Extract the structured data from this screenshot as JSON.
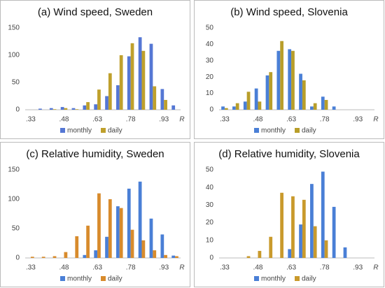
{
  "chart_data": [
    {
      "type": "bar",
      "title": "(a) Wind speed, Sweden",
      "xlabel": "R",
      "categories": [
        ".33",
        null,
        null,
        ".48",
        null,
        null,
        ".63",
        null,
        null,
        ".78",
        null,
        null,
        ".93",
        null
      ],
      "series": [
        {
          "name": "monthly",
          "color": "#5577d4",
          "values": [
            0,
            2,
            3,
            5,
            3,
            8,
            10,
            25,
            45,
            98,
            133,
            121,
            38,
            8
          ]
        },
        {
          "name": "daily",
          "color": "#bfa02c",
          "values": [
            0,
            0,
            1,
            3,
            1,
            14,
            37,
            67,
            100,
            122,
            108,
            43,
            18,
            0
          ]
        }
      ],
      "ylim": [
        0,
        150
      ],
      "yticks": [
        0,
        50,
        100,
        150
      ]
    },
    {
      "type": "bar",
      "title": "(b) Wind speed, Slovenia",
      "xlabel": "R",
      "categories": [
        ".33",
        null,
        null,
        ".48",
        null,
        null,
        ".63",
        null,
        null,
        ".78",
        null,
        null,
        ".93",
        null
      ],
      "series": [
        {
          "name": "monthly",
          "color": "#4a7fd6",
          "values": [
            2,
            2,
            5,
            13,
            21,
            36,
            37,
            22,
            2,
            8,
            2,
            0,
            0,
            0
          ]
        },
        {
          "name": "daily",
          "color": "#b89e2a",
          "values": [
            1,
            4,
            11,
            5,
            23,
            42,
            36,
            18,
            4,
            6,
            0,
            0,
            0,
            0
          ]
        }
      ],
      "ylim": [
        0,
        50
      ],
      "yticks": [
        0,
        10,
        20,
        30,
        40,
        50
      ]
    },
    {
      "type": "bar",
      "title": "(c) Relative humidity, Sweden",
      "xlabel": "R",
      "categories": [
        ".33",
        null,
        null,
        ".48",
        null,
        null,
        ".63",
        null,
        null,
        ".78",
        null,
        null,
        ".93",
        null
      ],
      "series": [
        {
          "name": "monthly",
          "color": "#4a7fd6",
          "values": [
            0,
            0,
            0,
            0,
            0,
            5,
            13,
            36,
            88,
            118,
            130,
            67,
            40,
            4
          ]
        },
        {
          "name": "daily",
          "color": "#d88b2c",
          "values": [
            2,
            2,
            3,
            10,
            37,
            55,
            110,
            100,
            85,
            48,
            30,
            13,
            5,
            3
          ]
        }
      ],
      "ylim": [
        0,
        150
      ],
      "yticks": [
        0,
        50,
        100,
        150
      ]
    },
    {
      "type": "bar",
      "title": "(d) Relative humidity, Slovenia",
      "xlabel": "R",
      "categories": [
        ".33",
        null,
        null,
        ".48",
        null,
        null,
        ".63",
        null,
        null,
        ".78",
        null,
        null,
        ".93",
        null
      ],
      "series": [
        {
          "name": "monthly",
          "color": "#4a7fd6",
          "values": [
            0,
            0,
            0,
            0,
            0,
            0,
            5,
            19,
            42,
            49,
            29,
            6,
            0,
            0
          ]
        },
        {
          "name": "daily",
          "color": "#c99a2c",
          "values": [
            0,
            0,
            1,
            4,
            12,
            37,
            35,
            33,
            18,
            10,
            0,
            0,
            0,
            0
          ]
        }
      ],
      "ylim": [
        0,
        50
      ],
      "yticks": [
        0,
        10,
        20,
        30,
        40,
        50
      ]
    }
  ]
}
